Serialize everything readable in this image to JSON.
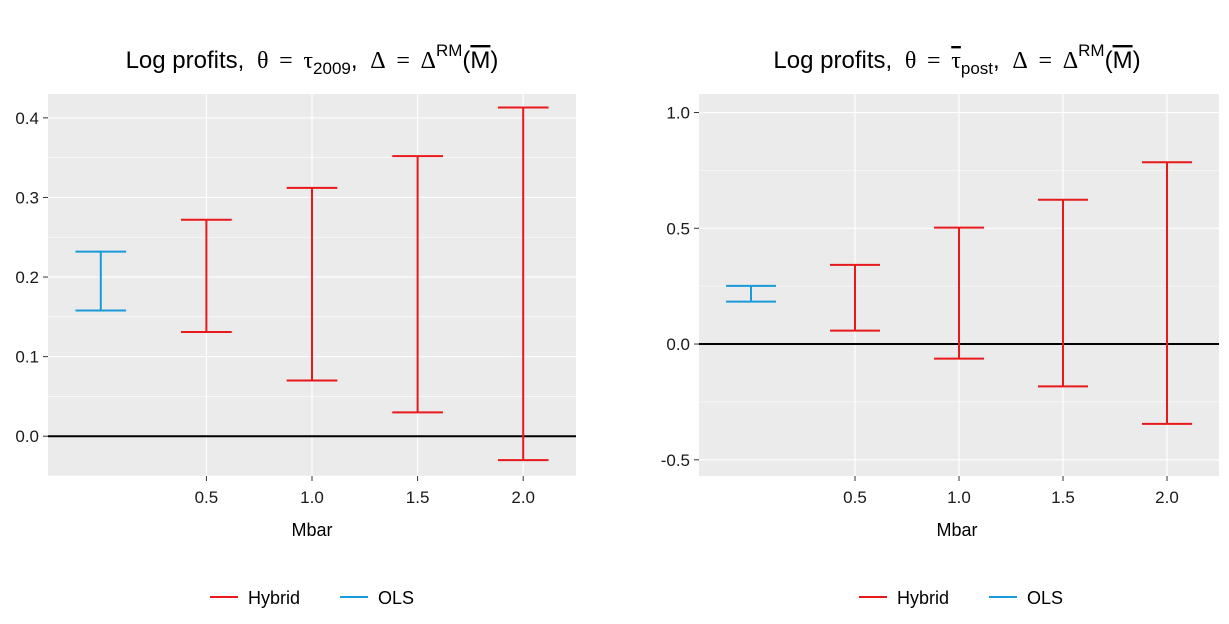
{
  "chart_data": [
    {
      "type": "errorbar",
      "title_prefix": "Log profits,",
      "title_math": {
        "theta": "θ",
        "eq": "=",
        "tau": "τ",
        "tau_sub": "2009",
        "delta": "Δ",
        "delta_sup": "RM",
        "mbar": "M"
      },
      "xlabel": "Mbar",
      "ylabel": "",
      "x_categories": [
        "OLS",
        "0.5",
        "1.0",
        "1.5",
        "2.0"
      ],
      "x_tick_labels": [
        "0.5",
        "1.0",
        "1.5",
        "2.0"
      ],
      "y_ticks": [
        "0.0",
        "0.1",
        "0.2",
        "0.3",
        "0.4"
      ],
      "ylim": [
        -0.05,
        0.43
      ],
      "hline": 0,
      "grid": true,
      "series": [
        {
          "name": "OLS",
          "color": "#1a9bd7",
          "points": [
            {
              "x": "OLS",
              "lower": 0.158,
              "upper": 0.232
            }
          ]
        },
        {
          "name": "Hybrid",
          "color": "#e8191b",
          "points": [
            {
              "x": "0.5",
              "lower": 0.131,
              "upper": 0.272
            },
            {
              "x": "1.0",
              "lower": 0.07,
              "upper": 0.312
            },
            {
              "x": "1.5",
              "lower": 0.03,
              "upper": 0.352
            },
            {
              "x": "2.0",
              "lower": -0.03,
              "upper": 0.413
            }
          ]
        }
      ],
      "legend": {
        "position": "bottom",
        "items": [
          "Hybrid",
          "OLS"
        ]
      }
    },
    {
      "type": "errorbar",
      "title_prefix": "Log profits,",
      "title_math": {
        "theta": "θ",
        "eq": "=",
        "tau": "τ",
        "tau_sub": "post",
        "delta": "Δ",
        "delta_sup": "RM",
        "mbar": "M"
      },
      "xlabel": "Mbar",
      "ylabel": "",
      "x_categories": [
        "OLS",
        "0.5",
        "1.0",
        "1.5",
        "2.0"
      ],
      "x_tick_labels": [
        "0.5",
        "1.0",
        "1.5",
        "2.0"
      ],
      "y_ticks": [
        "-0.5",
        "0.0",
        "0.5",
        "1.0"
      ],
      "ylim": [
        -0.57,
        1.08
      ],
      "hline": 0,
      "grid": true,
      "series": [
        {
          "name": "OLS",
          "color": "#1a9bd7",
          "points": [
            {
              "x": "OLS",
              "lower": 0.183,
              "upper": 0.251
            }
          ]
        },
        {
          "name": "Hybrid",
          "color": "#e8191b",
          "points": [
            {
              "x": "0.5",
              "lower": 0.058,
              "upper": 0.342
            },
            {
              "x": "1.0",
              "lower": -0.063,
              "upper": 0.503
            },
            {
              "x": "1.5",
              "lower": -0.183,
              "upper": 0.623
            },
            {
              "x": "2.0",
              "lower": -0.345,
              "upper": 0.785
            }
          ]
        }
      ],
      "legend": {
        "position": "bottom",
        "items": [
          "Hybrid",
          "OLS"
        ]
      }
    }
  ]
}
